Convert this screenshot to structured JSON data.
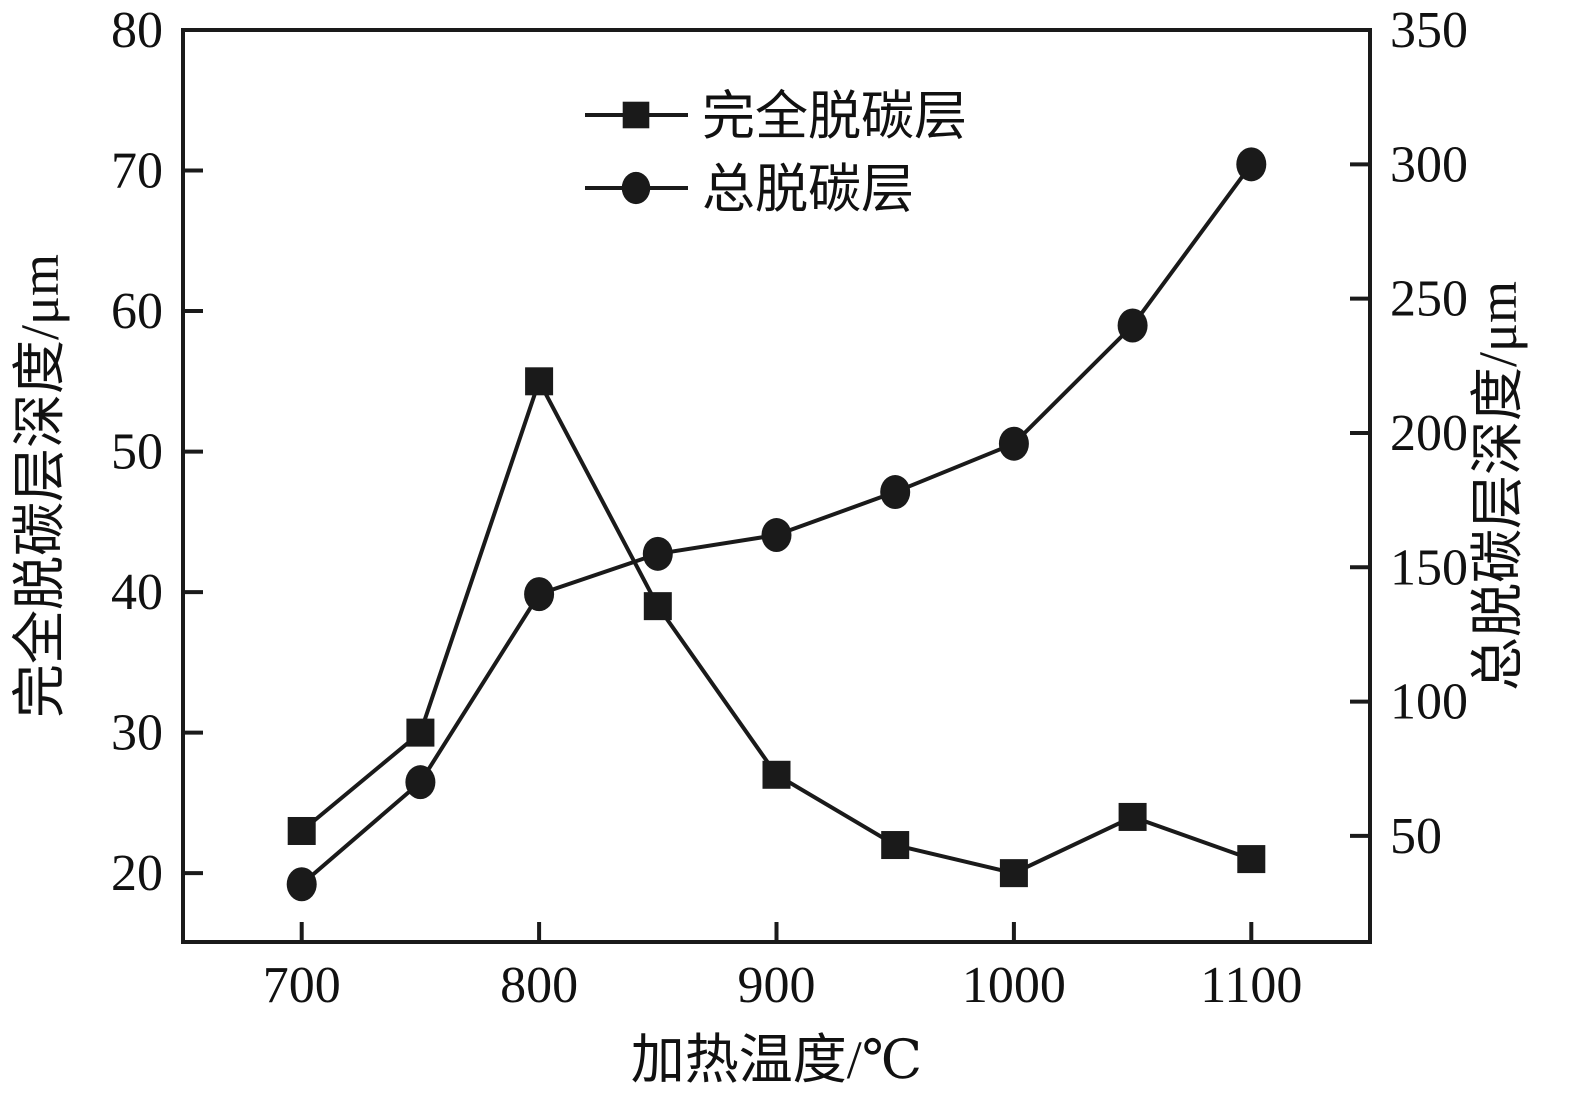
{
  "figure": {
    "background": "#ffffff",
    "foreground": "#111111"
  },
  "chart_data": {
    "type": "line",
    "x": [
      700,
      750,
      800,
      850,
      900,
      950,
      1000,
      1050,
      1100
    ],
    "series": [
      {
        "name": "完全脱碳层",
        "axis": "left",
        "marker": "square",
        "values": [
          23,
          30,
          55,
          39,
          27,
          22,
          20,
          24,
          21
        ]
      },
      {
        "name": "总脱碳层",
        "axis": "right",
        "marker": "circle",
        "values": [
          32,
          70,
          140,
          155,
          162,
          178,
          196,
          240,
          300
        ]
      }
    ],
    "xlabel": "加热温度/℃",
    "ylabel_left": "完全脱碳层深度/μm",
    "ylabel_right": "总脱碳层深度/μm",
    "x_ticks": [
      700,
      800,
      900,
      1000,
      1100
    ],
    "left_ticks": [
      20,
      30,
      40,
      50,
      60,
      70,
      80
    ],
    "right_ticks": [
      50,
      100,
      150,
      200,
      250,
      300,
      350
    ],
    "x_range": [
      650,
      1150
    ],
    "left_range": [
      15.1,
      80
    ],
    "right_range": [
      10.5,
      350
    ],
    "grid": false,
    "legend_position": "top-center",
    "line_color": "#1a1a1a",
    "background": "#ffffff"
  }
}
